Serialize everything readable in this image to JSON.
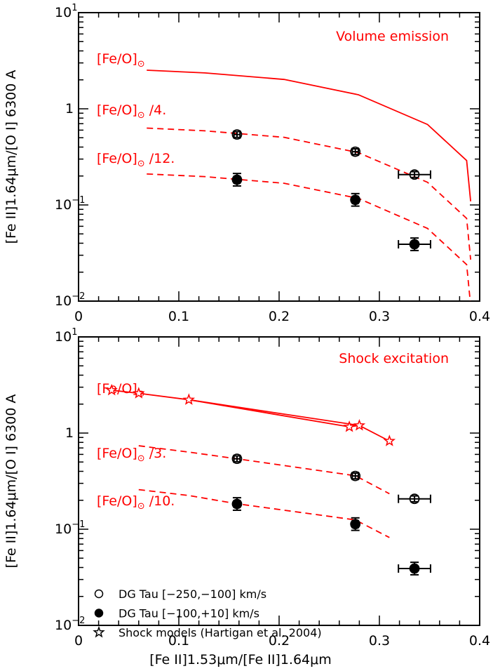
{
  "chart_data": [
    {
      "type": "scatter",
      "annotation": "Volume emission",
      "ylabel": "[Fe II]1.64μm/[O I] 6300 A",
      "xlabel": "",
      "xlim": [
        0,
        0.4
      ],
      "ylim": [
        0.01,
        10
      ],
      "yscale": "log",
      "xticks": [
        "0",
        "0.1",
        "0.2",
        "0.3",
        "0.4"
      ],
      "yticks": [
        {
          "base": "10",
          "exp": "1"
        },
        {
          "base": "1",
          "exp": ""
        },
        {
          "base": "10",
          "exp": "−1"
        },
        {
          "base": "10",
          "exp": "−2"
        }
      ],
      "observations": [
        {
          "series": "DG Tau [−250,−100] km/s",
          "marker": "open-circle",
          "points": [
            {
              "x": 0.158,
              "y": 0.54,
              "xerr": 0.003,
              "yerr_dex": 0.03
            },
            {
              "x": 0.276,
              "y": 0.358,
              "xerr": 0.003,
              "yerr_dex": 0.03
            },
            {
              "x": 0.335,
              "y": 0.207,
              "xerr": 0.016,
              "yerr_dex": 0.03
            }
          ]
        },
        {
          "series": "DG Tau [−100,+10] km/s",
          "marker": "filled-circle",
          "points": [
            {
              "x": 0.158,
              "y": 0.183,
              "xerr": 0.003,
              "yerr_dex": 0.065
            },
            {
              "x": 0.276,
              "y": 0.113,
              "xerr": 0.003,
              "yerr_dex": 0.065
            },
            {
              "x": 0.335,
              "y": 0.039,
              "xerr": 0.016,
              "yerr_dex": 0.065
            }
          ]
        }
      ],
      "models": [
        {
          "label": "[Fe/O]",
          "suffix": "",
          "style": "solid",
          "x": [
            0.068,
            0.126,
            0.205,
            0.279,
            0.348,
            0.387,
            0.391
          ],
          "y": [
            2.52,
            2.36,
            2.02,
            1.4,
            0.687,
            0.29,
            0.109
          ]
        },
        {
          "label": "[Fe/O]",
          "suffix": " /4.",
          "style": "dashed",
          "x": [
            0.068,
            0.126,
            0.205,
            0.279,
            0.348,
            0.387,
            0.391
          ],
          "y": [
            0.63,
            0.59,
            0.505,
            0.35,
            0.172,
            0.0725,
            0.027
          ]
        },
        {
          "label": "[Fe/O]",
          "suffix": " /12.",
          "style": "dashed",
          "x": [
            0.068,
            0.126,
            0.205,
            0.279,
            0.348,
            0.387,
            0.391
          ],
          "y": [
            0.21,
            0.197,
            0.168,
            0.117,
            0.057,
            0.024,
            0.009
          ]
        }
      ]
    },
    {
      "type": "scatter",
      "annotation": "Shock excitation",
      "ylabel": "[Fe II]1.64μm/[O I] 6300 A",
      "xlabel": "[Fe II]1.53μm/[Fe II]1.64μm",
      "xlim": [
        0,
        0.4
      ],
      "ylim": [
        0.01,
        10
      ],
      "yscale": "log",
      "xticks": [
        "0",
        "0.1",
        "0.2",
        "0.3",
        "0.4"
      ],
      "yticks": [
        {
          "base": "10",
          "exp": "1"
        },
        {
          "base": "1",
          "exp": ""
        },
        {
          "base": "10",
          "exp": "−1"
        },
        {
          "base": "10",
          "exp": "−2"
        }
      ],
      "observations": [
        {
          "series": "DG Tau [−250,−100] km/s",
          "marker": "open-circle",
          "points": [
            {
              "x": 0.158,
              "y": 0.54,
              "xerr": 0.003,
              "yerr_dex": 0.03
            },
            {
              "x": 0.276,
              "y": 0.358,
              "xerr": 0.003,
              "yerr_dex": 0.03
            },
            {
              "x": 0.335,
              "y": 0.207,
              "xerr": 0.016,
              "yerr_dex": 0.03
            }
          ]
        },
        {
          "series": "DG Tau [−100,+10] km/s",
          "marker": "filled-circle",
          "points": [
            {
              "x": 0.158,
              "y": 0.183,
              "xerr": 0.003,
              "yerr_dex": 0.065
            },
            {
              "x": 0.276,
              "y": 0.113,
              "xerr": 0.003,
              "yerr_dex": 0.065
            },
            {
              "x": 0.335,
              "y": 0.039,
              "xerr": 0.016,
              "yerr_dex": 0.065
            }
          ]
        }
      ],
      "shock_models": {
        "series": "Shock models (Hartigan et al. 2004)",
        "marker": "open-star",
        "points": [
          {
            "x": 0.033,
            "y": 2.79
          },
          {
            "x": 0.06,
            "y": 2.59
          },
          {
            "x": 0.11,
            "y": 2.22
          },
          {
            "x": 0.27,
            "y": 1.16
          },
          {
            "x": 0.28,
            "y": 1.2
          },
          {
            "x": 0.31,
            "y": 0.826
          }
        ],
        "connections": [
          [
            0,
            1
          ],
          [
            1,
            2
          ],
          [
            2,
            3
          ],
          [
            2,
            4
          ],
          [
            3,
            4
          ],
          [
            4,
            5
          ]
        ]
      },
      "models": [
        {
          "label": "[Fe/O]",
          "suffix": "",
          "style": "none",
          "x": [],
          "y": []
        },
        {
          "label": "[Fe/O]",
          "suffix": " /3.",
          "style": "dashed",
          "x": [
            0.06,
            0.11,
            0.158,
            0.276,
            0.31
          ],
          "y": [
            0.738,
            0.634,
            0.54,
            0.36,
            0.234
          ]
        },
        {
          "label": "[Fe/O]",
          "suffix": " /10.",
          "style": "dashed",
          "x": [
            0.06,
            0.11,
            0.158,
            0.276,
            0.31
          ],
          "y": [
            0.258,
            0.224,
            0.184,
            0.125,
            0.082
          ]
        }
      ],
      "legend": {
        "placement": "bottom-left",
        "entries": [
          {
            "marker": "open-circle",
            "label": "DG Tau [−250,−100] km/s"
          },
          {
            "marker": "filled-circle",
            "label": "DG Tau [−100,+10] km/s"
          },
          {
            "marker": "open-star",
            "label": "Shock models (Hartigan et al. 2004)"
          }
        ]
      }
    }
  ],
  "sun_symbol": "⊙",
  "colors": {
    "models": "#ff0000",
    "data": "#000000"
  }
}
